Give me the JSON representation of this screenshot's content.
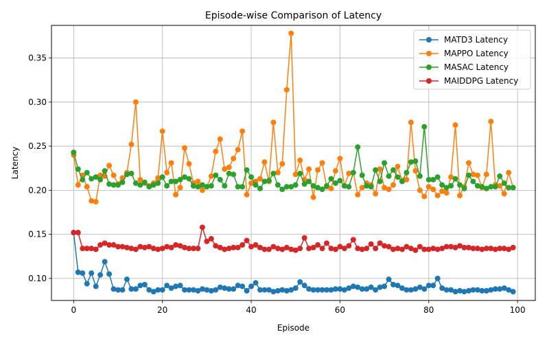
{
  "chart_data": {
    "type": "line",
    "title": "Episode-wise Comparison of Latency",
    "xlabel": "Episode",
    "ylabel": "Latency",
    "xlim": [
      -5,
      104
    ],
    "ylim": [
      0.075,
      0.387
    ],
    "xticks": [
      0,
      20,
      40,
      60,
      80,
      100
    ],
    "yticks": [
      0.1,
      0.15,
      0.2,
      0.25,
      0.3,
      0.35
    ],
    "ytick_labels": [
      "0.10",
      "0.15",
      "0.20",
      "0.25",
      "0.30",
      "0.35"
    ],
    "grid": true,
    "legend_position": "top-right",
    "x": [
      0,
      1,
      2,
      3,
      4,
      5,
      6,
      7,
      8,
      9,
      10,
      11,
      12,
      13,
      14,
      15,
      16,
      17,
      18,
      19,
      20,
      21,
      22,
      23,
      24,
      25,
      26,
      27,
      28,
      29,
      30,
      31,
      32,
      33,
      34,
      35,
      36,
      37,
      38,
      39,
      40,
      41,
      42,
      43,
      44,
      45,
      46,
      47,
      48,
      49,
      50,
      51,
      52,
      53,
      54,
      55,
      56,
      57,
      58,
      59,
      60,
      61,
      62,
      63,
      64,
      65,
      66,
      67,
      68,
      69,
      70,
      71,
      72,
      73,
      74,
      75,
      76,
      77,
      78,
      79,
      80,
      81,
      82,
      83,
      84,
      85,
      86,
      87,
      88,
      89,
      90,
      91,
      92,
      93,
      94,
      95,
      96,
      97,
      98,
      99
    ],
    "series": [
      {
        "name": "MATD3 Latency",
        "color": "#1f77b4",
        "values": [
          0.152,
          0.107,
          0.106,
          0.094,
          0.106,
          0.091,
          0.104,
          0.119,
          0.105,
          0.088,
          0.087,
          0.087,
          0.099,
          0.088,
          0.088,
          0.092,
          0.093,
          0.087,
          0.085,
          0.087,
          0.087,
          0.092,
          0.089,
          0.091,
          0.092,
          0.087,
          0.087,
          0.087,
          0.086,
          0.088,
          0.087,
          0.086,
          0.087,
          0.09,
          0.089,
          0.088,
          0.088,
          0.092,
          0.091,
          0.086,
          0.091,
          0.095,
          0.087,
          0.087,
          0.087,
          0.085,
          0.086,
          0.087,
          0.086,
          0.087,
          0.089,
          0.096,
          0.092,
          0.088,
          0.087,
          0.087,
          0.087,
          0.087,
          0.087,
          0.088,
          0.088,
          0.087,
          0.089,
          0.091,
          0.09,
          0.088,
          0.088,
          0.09,
          0.087,
          0.09,
          0.091,
          0.099,
          0.093,
          0.092,
          0.089,
          0.087,
          0.087,
          0.088,
          0.09,
          0.088,
          0.092,
          0.092,
          0.1,
          0.089,
          0.087,
          0.087,
          0.085,
          0.086,
          0.085,
          0.086,
          0.087,
          0.087,
          0.086,
          0.086,
          0.087,
          0.088,
          0.088,
          0.089,
          0.087,
          0.085
        ]
      },
      {
        "name": "MAPPO Latency",
        "color": "#ff7f0e",
        "values": [
          0.24,
          0.206,
          0.217,
          0.204,
          0.188,
          0.187,
          0.217,
          0.216,
          0.228,
          0.217,
          0.207,
          0.214,
          0.22,
          0.252,
          0.3,
          0.212,
          0.208,
          0.205,
          0.208,
          0.214,
          0.267,
          0.22,
          0.231,
          0.195,
          0.203,
          0.248,
          0.23,
          0.208,
          0.21,
          0.2,
          0.204,
          0.216,
          0.244,
          0.258,
          0.224,
          0.226,
          0.236,
          0.246,
          0.267,
          0.195,
          0.208,
          0.21,
          0.213,
          0.232,
          0.21,
          0.277,
          0.22,
          0.23,
          0.314,
          0.378,
          0.218,
          0.234,
          0.212,
          0.224,
          0.192,
          0.223,
          0.231,
          0.204,
          0.202,
          0.222,
          0.236,
          0.205,
          0.219,
          0.22,
          0.195,
          0.203,
          0.208,
          0.206,
          0.196,
          0.224,
          0.203,
          0.201,
          0.206,
          0.227,
          0.211,
          0.212,
          0.277,
          0.222,
          0.2,
          0.193,
          0.204,
          0.201,
          0.194,
          0.199,
          0.197,
          0.215,
          0.274,
          0.194,
          0.204,
          0.231,
          0.218,
          0.217,
          0.203,
          0.218,
          0.278,
          0.206,
          0.205,
          0.196,
          0.22,
          0.203
        ]
      },
      {
        "name": "MASAC Latency",
        "color": "#2ca02c",
        "values": [
          0.243,
          0.224,
          0.212,
          0.22,
          0.213,
          0.215,
          0.212,
          0.222,
          0.207,
          0.206,
          0.206,
          0.209,
          0.218,
          0.219,
          0.208,
          0.206,
          0.209,
          0.204,
          0.206,
          0.208,
          0.215,
          0.205,
          0.21,
          0.21,
          0.212,
          0.215,
          0.213,
          0.205,
          0.204,
          0.206,
          0.204,
          0.205,
          0.217,
          0.212,
          0.205,
          0.219,
          0.218,
          0.204,
          0.204,
          0.223,
          0.215,
          0.206,
          0.202,
          0.21,
          0.211,
          0.219,
          0.206,
          0.201,
          0.204,
          0.204,
          0.206,
          0.219,
          0.207,
          0.21,
          0.205,
          0.203,
          0.201,
          0.205,
          0.213,
          0.208,
          0.211,
          0.205,
          0.204,
          0.22,
          0.249,
          0.217,
          0.205,
          0.204,
          0.223,
          0.21,
          0.231,
          0.216,
          0.223,
          0.215,
          0.21,
          0.22,
          0.232,
          0.233,
          0.216,
          0.272,
          0.212,
          0.212,
          0.215,
          0.206,
          0.203,
          0.205,
          0.213,
          0.206,
          0.202,
          0.217,
          0.21,
          0.205,
          0.204,
          0.202,
          0.204,
          0.204,
          0.216,
          0.208,
          0.203,
          0.203
        ]
      },
      {
        "name": "MAIDDPG Latency",
        "color": "#d62728",
        "values": [
          0.152,
          0.152,
          0.134,
          0.134,
          0.134,
          0.133,
          0.138,
          0.14,
          0.138,
          0.138,
          0.136,
          0.136,
          0.135,
          0.134,
          0.133,
          0.136,
          0.135,
          0.136,
          0.134,
          0.133,
          0.134,
          0.136,
          0.135,
          0.138,
          0.137,
          0.135,
          0.134,
          0.134,
          0.134,
          0.158,
          0.142,
          0.145,
          0.137,
          0.135,
          0.133,
          0.134,
          0.135,
          0.135,
          0.138,
          0.143,
          0.136,
          0.138,
          0.135,
          0.133,
          0.133,
          0.136,
          0.134,
          0.133,
          0.135,
          0.133,
          0.132,
          0.134,
          0.146,
          0.134,
          0.135,
          0.138,
          0.134,
          0.14,
          0.134,
          0.133,
          0.136,
          0.134,
          0.137,
          0.144,
          0.134,
          0.133,
          0.134,
          0.139,
          0.134,
          0.14,
          0.137,
          0.136,
          0.133,
          0.134,
          0.133,
          0.136,
          0.134,
          0.132,
          0.136,
          0.133,
          0.133,
          0.134,
          0.133,
          0.134,
          0.136,
          0.136,
          0.135,
          0.137,
          0.135,
          0.135,
          0.134,
          0.134,
          0.133,
          0.134,
          0.134,
          0.133,
          0.134,
          0.134,
          0.133,
          0.135
        ]
      }
    ]
  }
}
